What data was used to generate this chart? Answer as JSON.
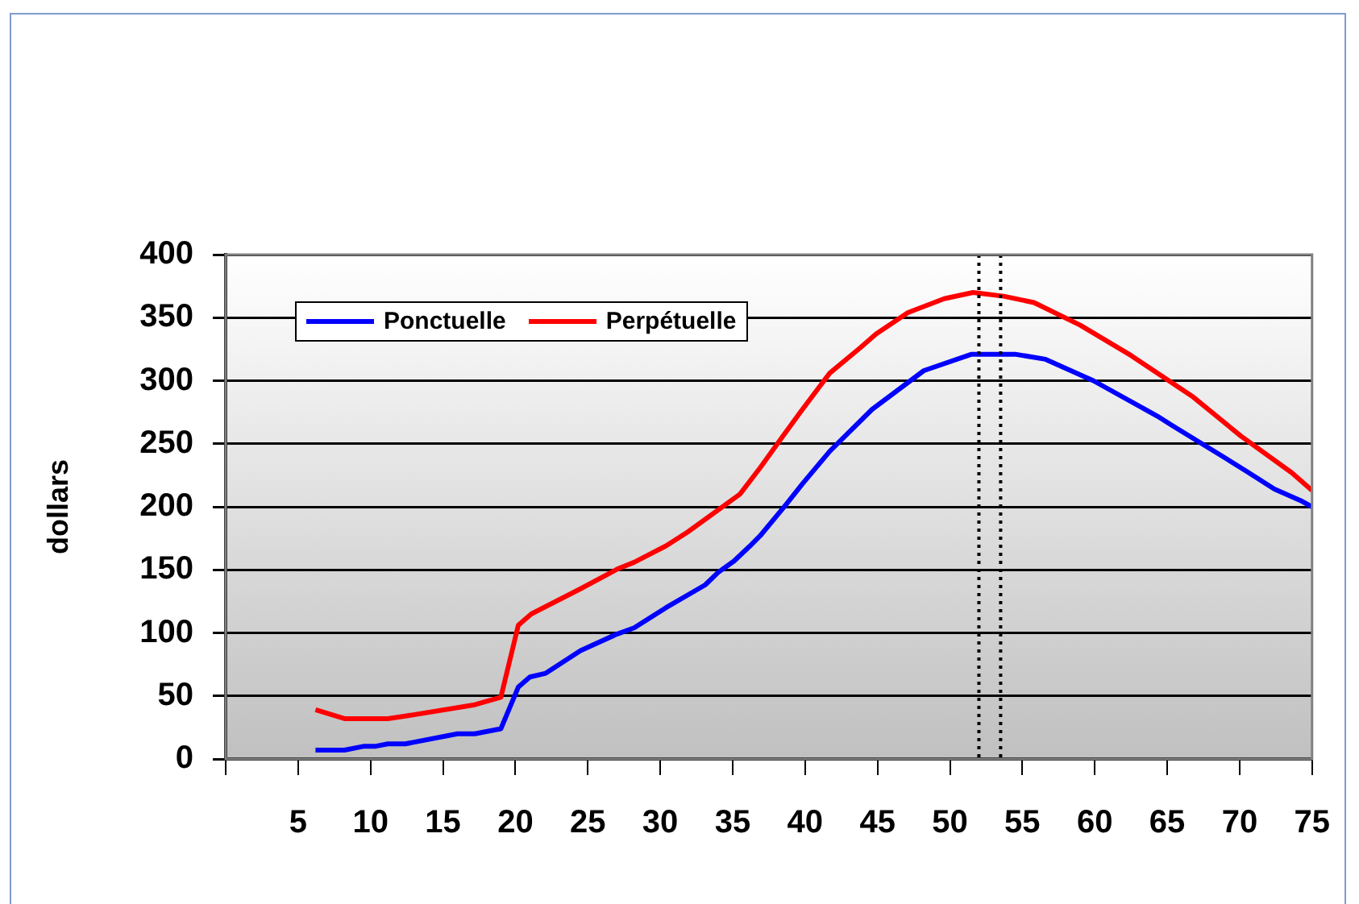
{
  "chart_data": {
    "type": "line",
    "ylabel": "dollars",
    "xlim": [
      0,
      75
    ],
    "xticks": [
      {
        "value": 0,
        "label": null
      },
      5,
      10,
      15,
      20,
      25,
      30,
      35,
      40,
      45,
      50,
      55,
      60,
      65,
      70,
      75
    ],
    "ylim": [
      0,
      400
    ],
    "yticks": [
      0,
      50,
      100,
      150,
      200,
      250,
      300,
      350,
      400
    ],
    "grid": "y",
    "legend": "top left",
    "line_style": "solid",
    "marker": "none",
    "series": [
      {
        "name": "Ponctuelle",
        "color": "#0000ff",
        "x": [
          6.2,
          8.2,
          9.5,
          10.3,
          11.2,
          12.4,
          16.0,
          17.2,
          19.0,
          20.2,
          21.0,
          22.1,
          24.5,
          27.0,
          28.2,
          30.4,
          33.1,
          34.0,
          35.1,
          36.2,
          36.9,
          38.7,
          39.8,
          41.7,
          44.6,
          48.2,
          51.5,
          54.5,
          56.6,
          59.9,
          64.3,
          65.4,
          69.1,
          70.5,
          72.4,
          74.2,
          75
        ],
        "values": [
          7,
          7,
          10,
          10,
          12,
          12,
          20,
          20,
          24,
          57,
          65,
          68,
          86,
          99,
          104,
          120,
          138,
          148,
          157,
          169,
          177,
          202,
          218,
          244,
          277,
          308,
          321,
          321,
          317,
          300,
          272,
          264,
          238,
          228,
          214,
          205,
          200
        ]
      },
      {
        "name": "Perpétuelle",
        "color": "#ff0000",
        "x": [
          6.2,
          8.2,
          11.2,
          12.4,
          17.2,
          19.0,
          20.2,
          21.1,
          24.5,
          27.1,
          28.2,
          30.4,
          31.9,
          35.5,
          36.9,
          38.4,
          39.8,
          41.7,
          43.8,
          44.9,
          47.1,
          49.6,
          51.6,
          53.7,
          55.8,
          59.0,
          62.5,
          66.8,
          70.1,
          73.6,
          75
        ],
        "values": [
          39,
          32,
          32,
          34,
          43,
          49,
          106,
          115,
          135,
          151,
          156,
          169,
          180,
          210,
          231,
          255,
          277,
          306,
          326,
          337,
          354,
          365,
          370,
          367,
          362,
          344,
          320,
          287,
          256,
          227,
          213
        ]
      }
    ],
    "ref_lines": [
      {
        "axis": "x",
        "value": 52,
        "color": "#000000",
        "line_style": "dotted"
      },
      {
        "axis": "x",
        "value": 53.5,
        "color": "#000000",
        "line_style": "dotted"
      }
    ]
  }
}
